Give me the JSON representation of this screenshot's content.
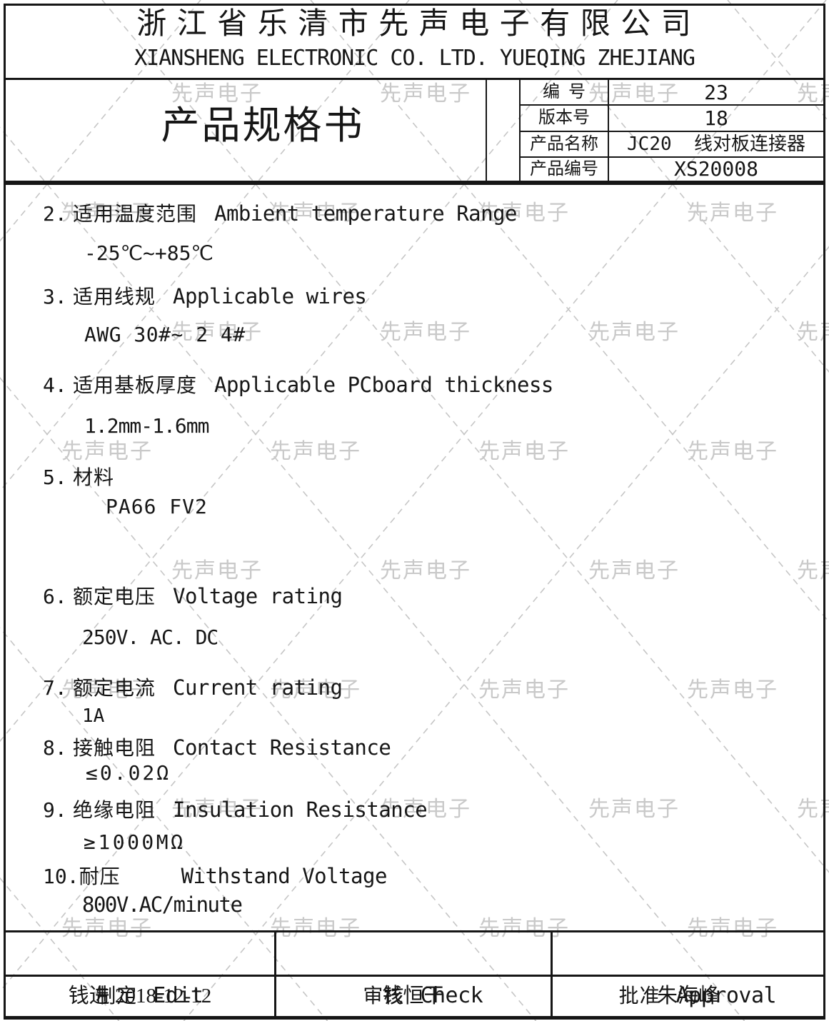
{
  "header": {
    "company_cn": "浙 江 省 乐 清 市 先 声 电 子 有 限 公 司",
    "company_en": "XIANSHENG ELECTRONIC CO. LTD. YUEQING ZHEJIANG"
  },
  "title_block": {
    "doc_title": "产品规格书",
    "rows": [
      {
        "label": "编  号",
        "value": "23"
      },
      {
        "label": "版本号",
        "value": "18"
      },
      {
        "label": "产品名称",
        "value": "JC20  线对板连接器"
      },
      {
        "label": "产品编号",
        "value": "XS20008"
      }
    ]
  },
  "spec_items": [
    {
      "num": "2.",
      "cn": "适用温度范围",
      "en": "Ambient temperature Range",
      "value": "-25℃~+85℃"
    },
    {
      "num": "3.",
      "cn": "适用线规",
      "en": "Applicable wires",
      "value": "AWG 30#~ 2 4#"
    },
    {
      "num": "4.",
      "cn": "适用基板厚度",
      "en": "Applicable PCboard thickness",
      "value": "1.2mm-1.6mm"
    },
    {
      "num": "5.",
      "cn": "材料",
      "en": "",
      "value": "PA66 FV2"
    },
    {
      "num": "6.",
      "cn": "额定电压",
      "en": "Voltage rating",
      "value": "250V. AC. DC"
    },
    {
      "num": "7.",
      "cn": "额定电流",
      "en": "Current rating",
      "value": "1A"
    },
    {
      "num": "8.",
      "cn": "接触电阻",
      "en": "Contact Resistance",
      "value": "≤0.02Ω"
    },
    {
      "num": "9.",
      "cn": "绝缘电阻",
      "en": "Insulation Resistance",
      "value": "≥1000MΩ"
    },
    {
      "num": "10.",
      "cn": "耐压",
      "en": "Withstand Voltage",
      "value": "800V.AC/minute"
    }
  ],
  "footer": {
    "columns": [
      {
        "title_cn": "制定",
        "title_en": "Edit",
        "signer": "钱进 2018-12-12"
      },
      {
        "title_cn": "审核",
        "title_en": "Check",
        "signer": "钱恒干"
      },
      {
        "title_cn": "批准",
        "title_en": "Approval",
        "signer": "朱海峰"
      }
    ]
  },
  "watermark": {
    "text": "先声电子",
    "text_color": "#c9c9c9",
    "line_color": "#c6c6c6"
  },
  "colors": {
    "ink": "#161616",
    "paper": "#ffffff"
  }
}
